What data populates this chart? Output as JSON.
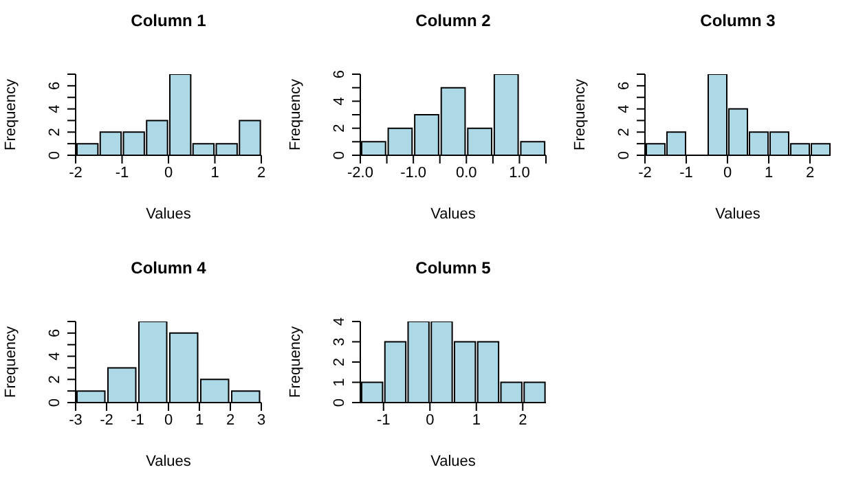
{
  "chart_data": [
    {
      "type": "histogram",
      "title": "Column 1",
      "xlabel": "Values",
      "ylabel": "Frequency",
      "color": "#add8e6",
      "bins": [
        -2,
        -1.5,
        -1,
        -0.5,
        0,
        0.5,
        1,
        1.5,
        2
      ],
      "values": [
        1,
        2,
        2,
        3,
        7,
        1,
        1,
        3
      ],
      "xlim": [
        -2,
        2
      ],
      "xticks": [
        -2,
        -1,
        0,
        1,
        2
      ],
      "ylim": [
        0,
        7
      ],
      "yticks": [
        0,
        {
          "value": 1,
          "label": null
        },
        2,
        {
          "value": 3,
          "label": null
        },
        4,
        {
          "value": 5,
          "label": null
        },
        6,
        {
          "value": 7,
          "label": null
        }
      ]
    },
    {
      "type": "histogram",
      "title": "Column 2",
      "xlabel": "Values",
      "ylabel": "Frequency",
      "color": "#add8e6",
      "bins": [
        -2,
        -1.5,
        -1,
        -0.5,
        0,
        0.5,
        1,
        1.5
      ],
      "values": [
        1,
        2,
        3,
        5,
        2,
        6,
        1
      ],
      "xlim": [
        -2,
        1.5
      ],
      "xticks": [
        {
          "value": -2,
          "label": "-2.0"
        },
        {
          "value": -1.5,
          "label": null
        },
        {
          "value": -1,
          "label": "-1.0"
        },
        {
          "value": -0.5,
          "label": null
        },
        {
          "value": 0,
          "label": "0.0"
        },
        {
          "value": 0.5,
          "label": null
        },
        {
          "value": 1,
          "label": "1.0"
        },
        {
          "value": 1.5,
          "label": null
        }
      ],
      "ylim": [
        0,
        6
      ],
      "yticks": [
        0,
        {
          "value": 1,
          "label": null
        },
        2,
        {
          "value": 3,
          "label": null
        },
        4,
        {
          "value": 5,
          "label": null
        },
        6
      ]
    },
    {
      "type": "histogram",
      "title": "Column 3",
      "xlabel": "Values",
      "ylabel": "Frequency",
      "color": "#add8e6",
      "bins": [
        -2,
        -1.5,
        -1,
        -0.5,
        0,
        0.5,
        1,
        1.5,
        2,
        2.5
      ],
      "values": [
        1,
        2,
        0,
        7,
        4,
        2,
        2,
        1,
        1
      ],
      "xlim": [
        -2,
        2.5
      ],
      "xticks": [
        -2,
        -1,
        0,
        1,
        2
      ],
      "ylim": [
        0,
        7
      ],
      "yticks": [
        0,
        {
          "value": 1,
          "label": null
        },
        2,
        {
          "value": 3,
          "label": null
        },
        4,
        {
          "value": 5,
          "label": null
        },
        6,
        {
          "value": 7,
          "label": null
        }
      ]
    },
    {
      "type": "histogram",
      "title": "Column 4",
      "xlabel": "Values",
      "ylabel": "Frequency",
      "color": "#add8e6",
      "bins": [
        -3,
        -2,
        -1,
        0,
        1,
        2,
        3
      ],
      "values": [
        1,
        3,
        7,
        6,
        2,
        1
      ],
      "xlim": [
        -3,
        3
      ],
      "xticks": [
        -3,
        -2,
        -1,
        0,
        1,
        2,
        3
      ],
      "ylim": [
        0,
        7
      ],
      "yticks": [
        0,
        {
          "value": 1,
          "label": null
        },
        2,
        {
          "value": 3,
          "label": null
        },
        4,
        {
          "value": 5,
          "label": null
        },
        6,
        {
          "value": 7,
          "label": null
        }
      ]
    },
    {
      "type": "histogram",
      "title": "Column 5",
      "xlabel": "Values",
      "ylabel": "Frequency",
      "color": "#add8e6",
      "bins": [
        -1.5,
        -1,
        -0.5,
        0,
        0.5,
        1,
        1.5,
        2,
        2.5
      ],
      "values": [
        1,
        3,
        4,
        4,
        3,
        3,
        1,
        1
      ],
      "xlim": [
        -1.5,
        2.5
      ],
      "xticks": [
        -1,
        0,
        1,
        2
      ],
      "ylim": [
        0,
        4
      ],
      "yticks": [
        0,
        1,
        2,
        3,
        4
      ]
    }
  ]
}
